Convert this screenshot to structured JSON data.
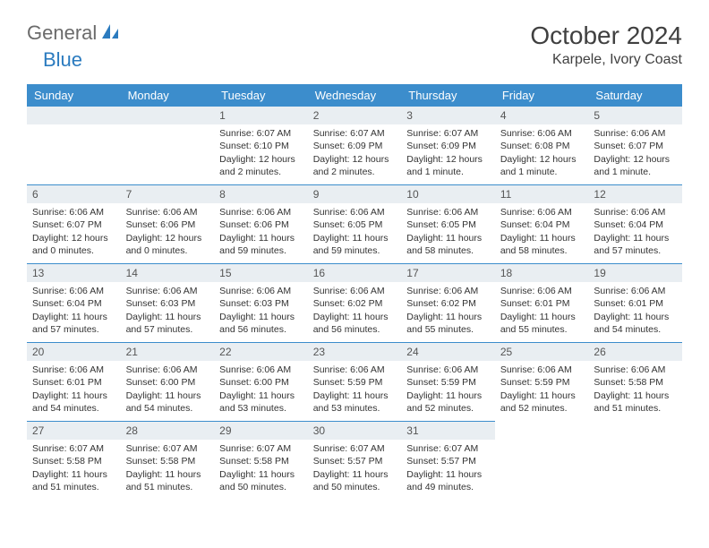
{
  "colors": {
    "header_bar": "#3c8dcc",
    "daynum_bg": "#e9eef2",
    "logo_gray": "#6b6b6b",
    "logo_blue": "#2b7bbf",
    "text": "#333333",
    "title_text": "#404040",
    "background": "#ffffff"
  },
  "typography": {
    "month_title_fontsize": 28,
    "location_fontsize": 16,
    "weekday_fontsize": 13,
    "daynum_fontsize": 12,
    "cell_fontsize": 10.5
  },
  "logo": {
    "part1": "General",
    "part2": "Blue"
  },
  "title": "October 2024",
  "location": "Karpele, Ivory Coast",
  "weekdays": [
    "Sunday",
    "Monday",
    "Tuesday",
    "Wednesday",
    "Thursday",
    "Friday",
    "Saturday"
  ],
  "calendar": {
    "type": "table",
    "leading_blanks": 2,
    "days": [
      {
        "n": "1",
        "sunrise": "Sunrise: 6:07 AM",
        "sunset": "Sunset: 6:10 PM",
        "daylight1": "Daylight: 12 hours",
        "daylight2": "and 2 minutes."
      },
      {
        "n": "2",
        "sunrise": "Sunrise: 6:07 AM",
        "sunset": "Sunset: 6:09 PM",
        "daylight1": "Daylight: 12 hours",
        "daylight2": "and 2 minutes."
      },
      {
        "n": "3",
        "sunrise": "Sunrise: 6:07 AM",
        "sunset": "Sunset: 6:09 PM",
        "daylight1": "Daylight: 12 hours",
        "daylight2": "and 1 minute."
      },
      {
        "n": "4",
        "sunrise": "Sunrise: 6:06 AM",
        "sunset": "Sunset: 6:08 PM",
        "daylight1": "Daylight: 12 hours",
        "daylight2": "and 1 minute."
      },
      {
        "n": "5",
        "sunrise": "Sunrise: 6:06 AM",
        "sunset": "Sunset: 6:07 PM",
        "daylight1": "Daylight: 12 hours",
        "daylight2": "and 1 minute."
      },
      {
        "n": "6",
        "sunrise": "Sunrise: 6:06 AM",
        "sunset": "Sunset: 6:07 PM",
        "daylight1": "Daylight: 12 hours",
        "daylight2": "and 0 minutes."
      },
      {
        "n": "7",
        "sunrise": "Sunrise: 6:06 AM",
        "sunset": "Sunset: 6:06 PM",
        "daylight1": "Daylight: 12 hours",
        "daylight2": "and 0 minutes."
      },
      {
        "n": "8",
        "sunrise": "Sunrise: 6:06 AM",
        "sunset": "Sunset: 6:06 PM",
        "daylight1": "Daylight: 11 hours",
        "daylight2": "and 59 minutes."
      },
      {
        "n": "9",
        "sunrise": "Sunrise: 6:06 AM",
        "sunset": "Sunset: 6:05 PM",
        "daylight1": "Daylight: 11 hours",
        "daylight2": "and 59 minutes."
      },
      {
        "n": "10",
        "sunrise": "Sunrise: 6:06 AM",
        "sunset": "Sunset: 6:05 PM",
        "daylight1": "Daylight: 11 hours",
        "daylight2": "and 58 minutes."
      },
      {
        "n": "11",
        "sunrise": "Sunrise: 6:06 AM",
        "sunset": "Sunset: 6:04 PM",
        "daylight1": "Daylight: 11 hours",
        "daylight2": "and 58 minutes."
      },
      {
        "n": "12",
        "sunrise": "Sunrise: 6:06 AM",
        "sunset": "Sunset: 6:04 PM",
        "daylight1": "Daylight: 11 hours",
        "daylight2": "and 57 minutes."
      },
      {
        "n": "13",
        "sunrise": "Sunrise: 6:06 AM",
        "sunset": "Sunset: 6:04 PM",
        "daylight1": "Daylight: 11 hours",
        "daylight2": "and 57 minutes."
      },
      {
        "n": "14",
        "sunrise": "Sunrise: 6:06 AM",
        "sunset": "Sunset: 6:03 PM",
        "daylight1": "Daylight: 11 hours",
        "daylight2": "and 57 minutes."
      },
      {
        "n": "15",
        "sunrise": "Sunrise: 6:06 AM",
        "sunset": "Sunset: 6:03 PM",
        "daylight1": "Daylight: 11 hours",
        "daylight2": "and 56 minutes."
      },
      {
        "n": "16",
        "sunrise": "Sunrise: 6:06 AM",
        "sunset": "Sunset: 6:02 PM",
        "daylight1": "Daylight: 11 hours",
        "daylight2": "and 56 minutes."
      },
      {
        "n": "17",
        "sunrise": "Sunrise: 6:06 AM",
        "sunset": "Sunset: 6:02 PM",
        "daylight1": "Daylight: 11 hours",
        "daylight2": "and 55 minutes."
      },
      {
        "n": "18",
        "sunrise": "Sunrise: 6:06 AM",
        "sunset": "Sunset: 6:01 PM",
        "daylight1": "Daylight: 11 hours",
        "daylight2": "and 55 minutes."
      },
      {
        "n": "19",
        "sunrise": "Sunrise: 6:06 AM",
        "sunset": "Sunset: 6:01 PM",
        "daylight1": "Daylight: 11 hours",
        "daylight2": "and 54 minutes."
      },
      {
        "n": "20",
        "sunrise": "Sunrise: 6:06 AM",
        "sunset": "Sunset: 6:01 PM",
        "daylight1": "Daylight: 11 hours",
        "daylight2": "and 54 minutes."
      },
      {
        "n": "21",
        "sunrise": "Sunrise: 6:06 AM",
        "sunset": "Sunset: 6:00 PM",
        "daylight1": "Daylight: 11 hours",
        "daylight2": "and 54 minutes."
      },
      {
        "n": "22",
        "sunrise": "Sunrise: 6:06 AM",
        "sunset": "Sunset: 6:00 PM",
        "daylight1": "Daylight: 11 hours",
        "daylight2": "and 53 minutes."
      },
      {
        "n": "23",
        "sunrise": "Sunrise: 6:06 AM",
        "sunset": "Sunset: 5:59 PM",
        "daylight1": "Daylight: 11 hours",
        "daylight2": "and 53 minutes."
      },
      {
        "n": "24",
        "sunrise": "Sunrise: 6:06 AM",
        "sunset": "Sunset: 5:59 PM",
        "daylight1": "Daylight: 11 hours",
        "daylight2": "and 52 minutes."
      },
      {
        "n": "25",
        "sunrise": "Sunrise: 6:06 AM",
        "sunset": "Sunset: 5:59 PM",
        "daylight1": "Daylight: 11 hours",
        "daylight2": "and 52 minutes."
      },
      {
        "n": "26",
        "sunrise": "Sunrise: 6:06 AM",
        "sunset": "Sunset: 5:58 PM",
        "daylight1": "Daylight: 11 hours",
        "daylight2": "and 51 minutes."
      },
      {
        "n": "27",
        "sunrise": "Sunrise: 6:07 AM",
        "sunset": "Sunset: 5:58 PM",
        "daylight1": "Daylight: 11 hours",
        "daylight2": "and 51 minutes."
      },
      {
        "n": "28",
        "sunrise": "Sunrise: 6:07 AM",
        "sunset": "Sunset: 5:58 PM",
        "daylight1": "Daylight: 11 hours",
        "daylight2": "and 51 minutes."
      },
      {
        "n": "29",
        "sunrise": "Sunrise: 6:07 AM",
        "sunset": "Sunset: 5:58 PM",
        "daylight1": "Daylight: 11 hours",
        "daylight2": "and 50 minutes."
      },
      {
        "n": "30",
        "sunrise": "Sunrise: 6:07 AM",
        "sunset": "Sunset: 5:57 PM",
        "daylight1": "Daylight: 11 hours",
        "daylight2": "and 50 minutes."
      },
      {
        "n": "31",
        "sunrise": "Sunrise: 6:07 AM",
        "sunset": "Sunset: 5:57 PM",
        "daylight1": "Daylight: 11 hours",
        "daylight2": "and 49 minutes."
      }
    ]
  }
}
